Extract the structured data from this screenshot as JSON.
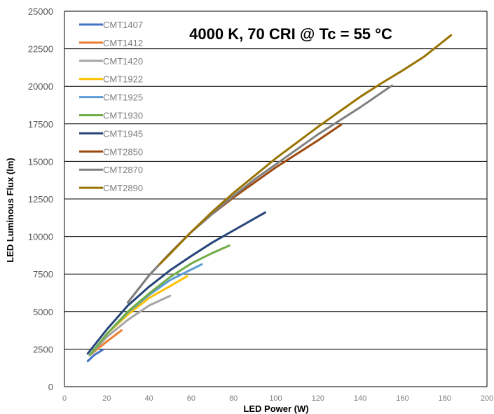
{
  "chart_data": {
    "type": "line",
    "title": "4000 K, 70 CRI @ Tc = 55 °C",
    "xlabel": "LED Power (W)",
    "ylabel": "LED Luminous Flux (lm)",
    "xlim": [
      0,
      200
    ],
    "ylim": [
      0,
      25000
    ],
    "xticks": [
      "0",
      "20",
      "40",
      "60",
      "80",
      "100",
      "120",
      "140",
      "160",
      "180",
      "200"
    ],
    "yticks": [
      "0",
      "2500",
      "5000",
      "7500",
      "10000",
      "12500",
      "15000",
      "17500",
      "20000",
      "22500",
      "25000"
    ],
    "grid": "horizontal",
    "legend_position": "top-left",
    "series": [
      {
        "name": "CMT1407",
        "color": "#4472c4",
        "x": [
          11,
          14,
          18
        ],
        "y": [
          1700,
          2100,
          2450
        ]
      },
      {
        "name": "CMT1412",
        "color": "#ed7d31",
        "x": [
          12,
          20,
          27
        ],
        "y": [
          2100,
          3000,
          3750
        ]
      },
      {
        "name": "CMT1420",
        "color": "#a5a5a5",
        "x": [
          12,
          20,
          30,
          40,
          50
        ],
        "y": [
          2100,
          3300,
          4450,
          5400,
          6050
        ]
      },
      {
        "name": "CMT1922",
        "color": "#ffc000",
        "x": [
          12,
          20,
          30,
          40,
          50,
          58
        ],
        "y": [
          2100,
          3500,
          4800,
          5900,
          6700,
          7350
        ]
      },
      {
        "name": "CMT1925",
        "color": "#5b9bd5",
        "x": [
          12,
          20,
          30,
          40,
          50,
          65
        ],
        "y": [
          2100,
          3500,
          4950,
          6100,
          7100,
          8150
        ]
      },
      {
        "name": "CMT1930",
        "color": "#70ad47",
        "x": [
          12,
          20,
          30,
          40,
          50,
          60,
          70,
          78
        ],
        "y": [
          2100,
          3500,
          5000,
          6200,
          7300,
          8200,
          8900,
          9400
        ]
      },
      {
        "name": "CMT1945",
        "color": "#264478",
        "x": [
          11,
          20,
          30,
          40,
          50,
          60,
          70,
          80,
          95
        ],
        "y": [
          2200,
          3800,
          5400,
          6650,
          7750,
          8700,
          9600,
          10400,
          11600
        ]
      },
      {
        "name": "CMT2850",
        "color": "#9e480e",
        "x": [
          30,
          40,
          50,
          60,
          70,
          80,
          90,
          100,
          110,
          120,
          131
        ],
        "y": [
          5600,
          7400,
          8900,
          10300,
          11500,
          12600,
          13600,
          14600,
          15500,
          16400,
          17450
        ]
      },
      {
        "name": "CMT2870",
        "color": "#7f7f7f",
        "x": [
          30,
          40,
          50,
          60,
          70,
          80,
          90,
          100,
          110,
          120,
          130,
          140,
          155
        ],
        "y": [
          5600,
          7400,
          8900,
          10300,
          11500,
          12700,
          13800,
          14800,
          15800,
          16800,
          17700,
          18600,
          20050
        ]
      },
      {
        "name": "CMT2890",
        "color": "#997300",
        "x": [
          45,
          50,
          60,
          70,
          80,
          90,
          100,
          110,
          120,
          130,
          140,
          150,
          160,
          170,
          183
        ],
        "y": [
          8150,
          8850,
          10300,
          11650,
          12900,
          14050,
          15200,
          16250,
          17300,
          18300,
          19300,
          20200,
          21050,
          21950,
          23400
        ]
      }
    ]
  }
}
